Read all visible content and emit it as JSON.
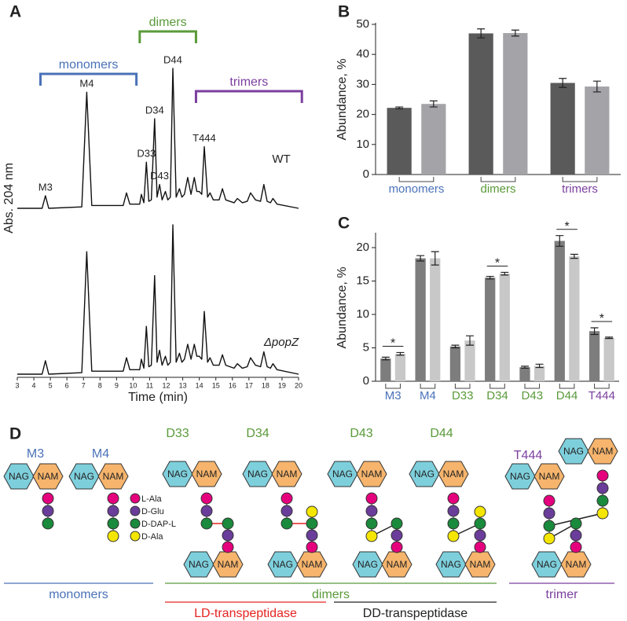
{
  "chart_data": [
    {
      "type": "line",
      "label": "A",
      "xlabel": "Time (min)",
      "ylabel": "Abs. 204 nm",
      "x": [
        3,
        4.5,
        4.7,
        4.9,
        6.9,
        7.2,
        7.5,
        9.4,
        9.6,
        9.8,
        10.4,
        10.5,
        10.65,
        10.8,
        10.95,
        11.1,
        11.3,
        11.45,
        11.6,
        11.75,
        11.95,
        12.1,
        12.25,
        12.4,
        12.6,
        12.8,
        12.95,
        13.1,
        13.3,
        13.5,
        13.7,
        13.85,
        14.0,
        14.15,
        14.3,
        14.5,
        14.65,
        14.85,
        15.2,
        15.4,
        15.6,
        16.1,
        16.3,
        16.6,
        16.9,
        17.1,
        17.4,
        17.7,
        17.9,
        18.1,
        18.3,
        18.45,
        18.7,
        20
      ],
      "xlim": [
        3,
        20
      ],
      "xticks": [
        3,
        4,
        5,
        6,
        7,
        8,
        9,
        10,
        11,
        12,
        13,
        14,
        15,
        16,
        17,
        18,
        19,
        20
      ],
      "ylim": [
        0,
        100
      ],
      "series": [
        {
          "name": "WT",
          "color": "#111111",
          "values": [
            0,
            0,
            9,
            0,
            1,
            83,
            2,
            2,
            11,
            3,
            3,
            10,
            4,
            33,
            5,
            6,
            64,
            8,
            17,
            6,
            12,
            6,
            8,
            100,
            8,
            14,
            8,
            10,
            22,
            10,
            22,
            12,
            12,
            10,
            44,
            8,
            11,
            6,
            6,
            14,
            6,
            4,
            7,
            4,
            5,
            11,
            6,
            5,
            17,
            5,
            4,
            7,
            3,
            0
          ]
        },
        {
          "name": "ΔpopZ",
          "color": "#111111",
          "values": [
            0,
            0,
            9,
            0,
            1,
            82,
            2,
            2,
            11,
            3,
            3,
            10,
            4,
            32,
            5,
            6,
            66,
            8,
            16,
            6,
            12,
            6,
            8,
            100,
            8,
            14,
            8,
            10,
            20,
            10,
            20,
            12,
            12,
            10,
            42,
            8,
            11,
            6,
            6,
            13,
            6,
            4,
            7,
            4,
            5,
            11,
            6,
            5,
            15,
            5,
            4,
            7,
            3,
            0
          ]
        }
      ],
      "peak_labels": [
        {
          "text": "M3",
          "x": 4.7
        },
        {
          "text": "M4",
          "x": 7.2
        },
        {
          "text": "D33",
          "x": 10.8
        },
        {
          "text": "D43",
          "x": 11.6
        },
        {
          "text": "D34",
          "x": 11.3
        },
        {
          "text": "D44",
          "x": 12.4
        },
        {
          "text": "T444",
          "x": 14.3
        }
      ],
      "groups": [
        {
          "text": "monomers",
          "color": "#4a72b8",
          "x": [
            4.4,
            10.2
          ]
        },
        {
          "text": "dimers",
          "color": "#5a9a3a",
          "x": [
            10.4,
            13.8
          ]
        },
        {
          "text": "trimers",
          "color": "#7b3f9e",
          "x": [
            13.8,
            20.2
          ]
        }
      ]
    },
    {
      "type": "bar",
      "label": "B",
      "ylabel": "Abundance, %",
      "categories": [
        "monomers",
        "dimers",
        "trimers"
      ],
      "category_colors": [
        "#4a72b8",
        "#5a9a3a",
        "#7b3f9e"
      ],
      "series": [
        {
          "color": "#5a5a5a",
          "values": [
            22.2,
            47,
            30.5
          ],
          "errors": [
            0.3,
            1.5,
            1.5
          ]
        },
        {
          "color": "#a3a3a8",
          "values": [
            23.5,
            47.1,
            29.3
          ],
          "errors": [
            1,
            1,
            1.8
          ]
        }
      ],
      "ylim": [
        0,
        50
      ],
      "yticks": [
        0,
        10,
        20,
        30,
        40,
        50
      ]
    },
    {
      "type": "bar",
      "label": "C",
      "ylabel": "Abundance, %",
      "categories": [
        "M3",
        "M4",
        "D33",
        "D34",
        "D43",
        "D44",
        "T444"
      ],
      "category_colors": [
        "#4a72b8",
        "#4a72b8",
        "#5a9a3a",
        "#5a9a3a",
        "#5a9a3a",
        "#5a9a3a",
        "#7b3f9e"
      ],
      "series": [
        {
          "color": "#7d7d7d",
          "values": [
            3.4,
            18.4,
            5.2,
            15.5,
            2.1,
            21,
            7.5
          ],
          "errors": [
            0.2,
            0.4,
            0.2,
            0.2,
            0.15,
            0.8,
            0.5
          ]
        },
        {
          "color": "#c8c8c8",
          "values": [
            4.1,
            18.4,
            6.1,
            16.1,
            2.3,
            18.7,
            6.5
          ],
          "errors": [
            0.2,
            1,
            0.7,
            0.2,
            0.25,
            0.3,
            0.1
          ]
        }
      ],
      "ylim": [
        0,
        22
      ],
      "yticks": [
        0,
        5,
        10,
        15,
        20
      ],
      "annotations": [
        {
          "text": "*",
          "category": "M3"
        },
        {
          "text": "*",
          "category": "D34"
        },
        {
          "text": "*",
          "category": "D44"
        },
        {
          "text": "*",
          "category": "T444"
        }
      ]
    }
  ],
  "diagram": {
    "label": "D",
    "structures": [
      {
        "name": "M3",
        "color": "#4a72b8"
      },
      {
        "name": "M4",
        "color": "#4a72b8"
      },
      {
        "name": "D33",
        "color": "#5a9a3a"
      },
      {
        "name": "D34",
        "color": "#5a9a3a"
      },
      {
        "name": "D43",
        "color": "#5a9a3a"
      },
      {
        "name": "D44",
        "color": "#5a9a3a"
      },
      {
        "name": "T444",
        "color": "#7b3f9e"
      }
    ],
    "sugars": [
      {
        "name": "NAG",
        "color": "#7ecfdc"
      },
      {
        "name": "NAM",
        "color": "#f6b46c"
      }
    ],
    "residues": [
      {
        "name": "L-Ala",
        "color": "#e5007d"
      },
      {
        "name": "D-Glu",
        "color": "#6a3d9a"
      },
      {
        "name": "D-DAP-L",
        "color": "#1a8a3c"
      },
      {
        "name": "D-Ala",
        "color": "#f4e600"
      }
    ],
    "groups": [
      {
        "text": "monomers",
        "color": "#4a72b8"
      },
      {
        "text": "dimers",
        "color": "#5a9a3a"
      },
      {
        "text": "trimer",
        "color": "#7b3f9e"
      },
      {
        "text": "LD-transpeptidase",
        "color": "#e52421"
      },
      {
        "text": "DD-transpeptidase",
        "color": "#222222"
      }
    ]
  }
}
